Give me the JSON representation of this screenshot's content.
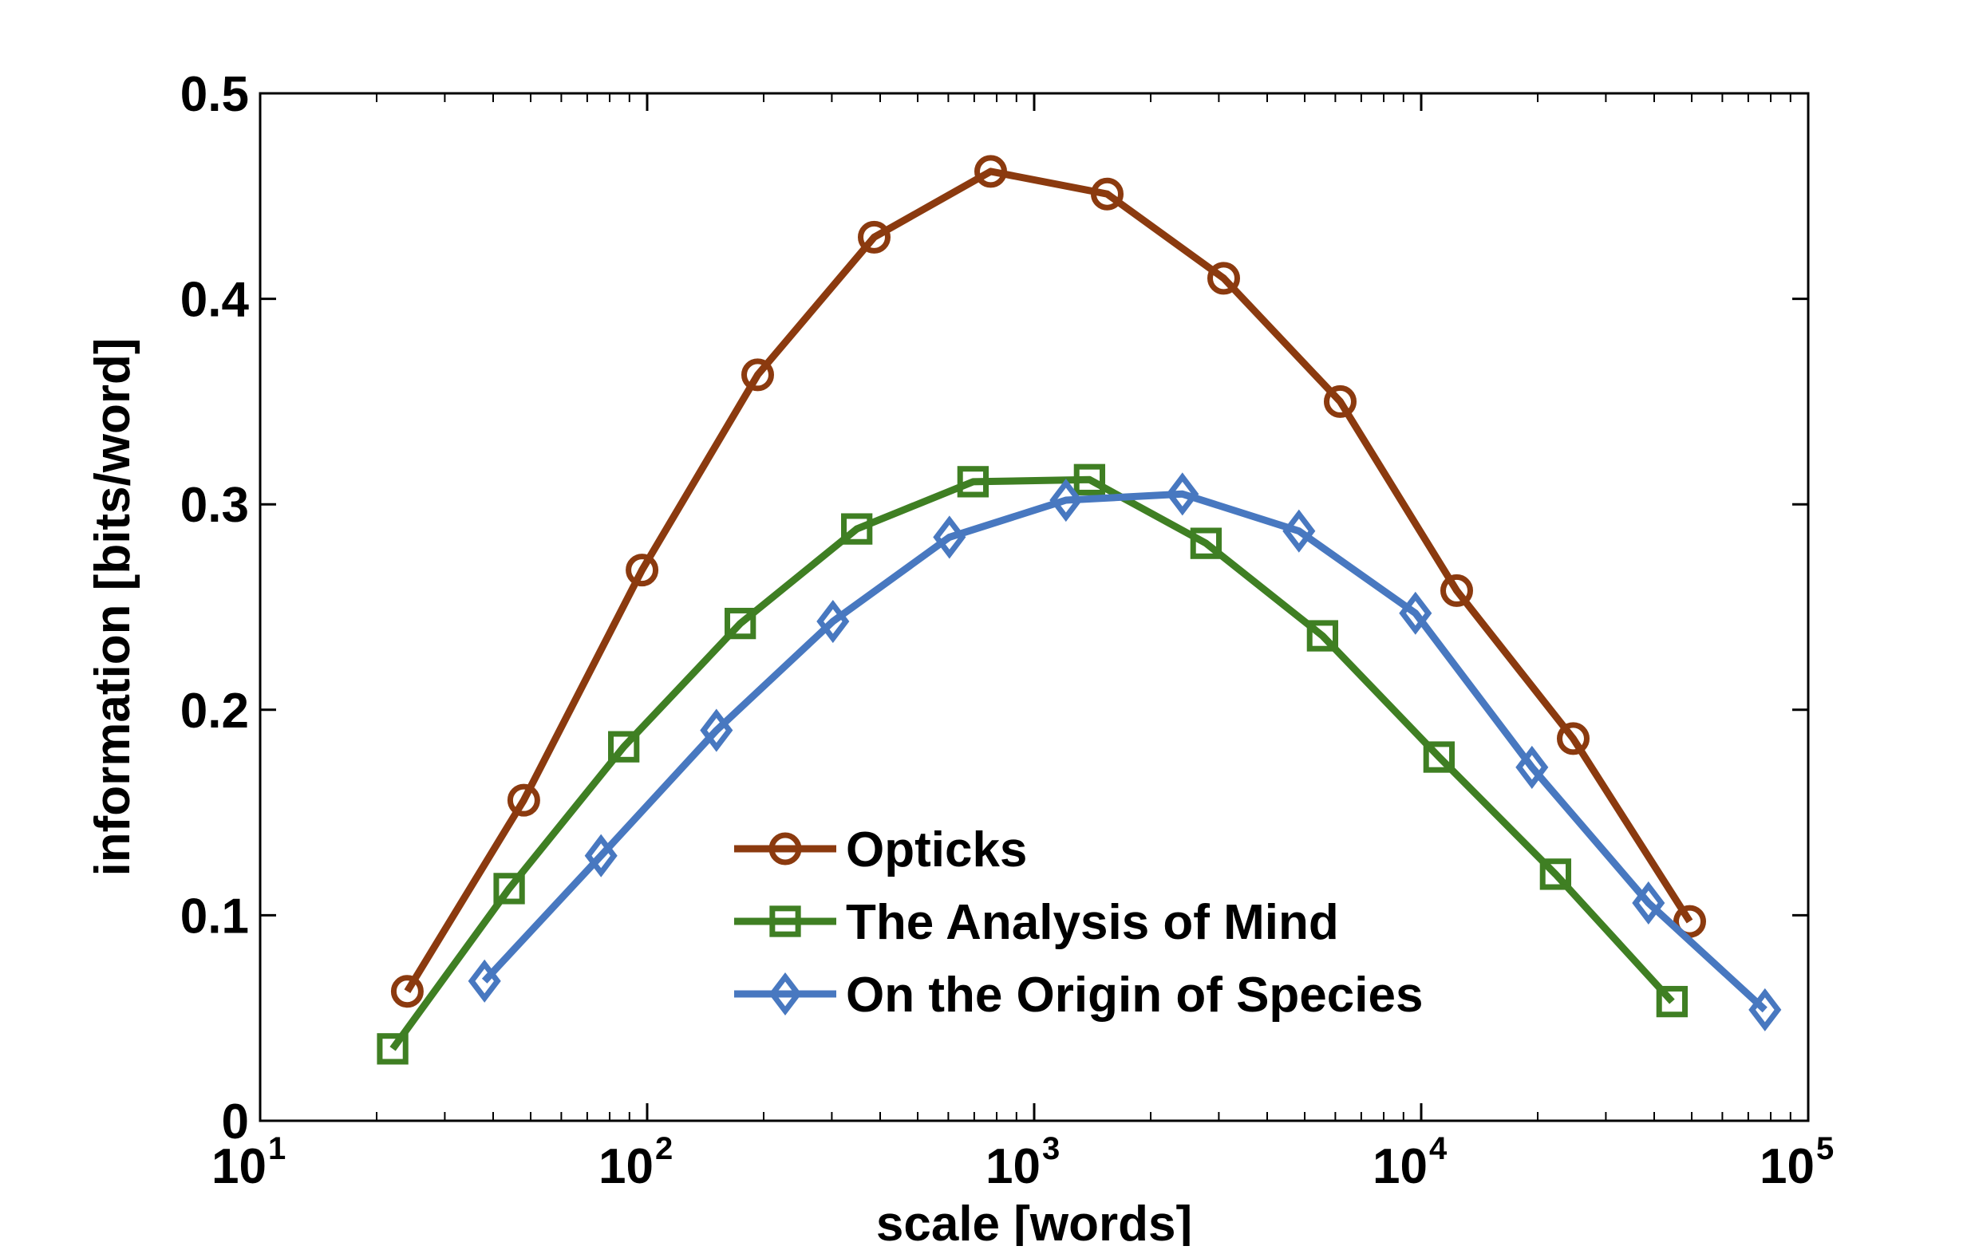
{
  "chart_data": {
    "type": "line",
    "title": "",
    "xlabel": "scale [words]",
    "ylabel": "information [bits/word]",
    "xscale": "log",
    "xlim": [
      10,
      100000
    ],
    "ylim": [
      0,
      0.5
    ],
    "x_ticks": [
      {
        "base": "10",
        "exp": "1",
        "value": 10
      },
      {
        "base": "10",
        "exp": "2",
        "value": 100
      },
      {
        "base": "10",
        "exp": "3",
        "value": 1000
      },
      {
        "base": "10",
        "exp": "4",
        "value": 10000
      },
      {
        "base": "10",
        "exp": "5",
        "value": 100000
      }
    ],
    "y_ticks": [
      {
        "label": "0",
        "value": 0
      },
      {
        "label": "0.1",
        "value": 0.1
      },
      {
        "label": "0.2",
        "value": 0.2
      },
      {
        "label": "0.3",
        "value": 0.3
      },
      {
        "label": "0.4",
        "value": 0.4
      },
      {
        "label": "0.5",
        "value": 0.5
      }
    ],
    "grid": false,
    "legend_position": "bottom-center",
    "series": [
      {
        "name": "Opticks",
        "color": "#8b3a0f",
        "marker": "circle",
        "x": [
          24,
          48,
          97,
          193,
          386,
          772,
          1544,
          3088,
          6176,
          12352,
          24704,
          49408
        ],
        "y": [
          0.063,
          0.156,
          0.268,
          0.363,
          0.43,
          0.462,
          0.451,
          0.41,
          0.35,
          0.258,
          0.186,
          0.097
        ]
      },
      {
        "name": "The Analysis of Mind",
        "color": "#3f7f23",
        "marker": "square",
        "x": [
          22,
          44,
          87,
          174,
          348,
          695,
          1390,
          2780,
          5560,
          11120,
          22240,
          44480
        ],
        "y": [
          0.035,
          0.113,
          0.182,
          0.242,
          0.288,
          0.311,
          0.312,
          0.281,
          0.236,
          0.177,
          0.12,
          0.058
        ]
      },
      {
        "name": "On the Origin of Species",
        "color": "#4878c0",
        "marker": "diamond",
        "x": [
          38,
          76,
          151,
          302,
          604,
          1208,
          2416,
          4832,
          9664,
          19328,
          38656,
          77312
        ],
        "y": [
          0.068,
          0.129,
          0.19,
          0.243,
          0.284,
          0.302,
          0.305,
          0.287,
          0.247,
          0.172,
          0.106,
          0.054
        ]
      }
    ]
  }
}
